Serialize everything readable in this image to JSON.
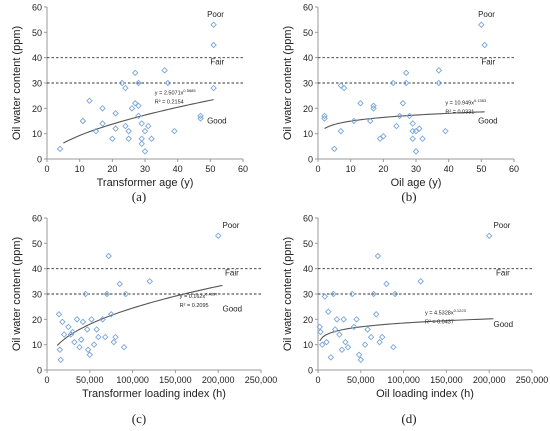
{
  "chart_data": [
    {
      "type": "scatter",
      "panel": "(a)",
      "xlabel": "Transformer age (y)",
      "ylabel": "Oil water content (ppm)",
      "xlim": [
        0,
        60
      ],
      "ylim": [
        0,
        60
      ],
      "xticks": [
        0,
        10,
        20,
        30,
        40,
        50,
        60
      ],
      "xtick_labels": [
        "0",
        "10",
        "20",
        "30",
        "40",
        "50",
        "60"
      ],
      "yticks": [
        0,
        10,
        20,
        30,
        40,
        50,
        60
      ],
      "ytick_labels": [
        "0",
        "10",
        "20",
        "30",
        "40",
        "50",
        "60"
      ],
      "grid": false,
      "marker_color": "#7aa6d9",
      "trend_color": "#555555",
      "thresholds": [
        40,
        30
      ],
      "zones": [
        {
          "label": "Poor",
          "x": 49,
          "y": 56
        },
        {
          "label": "Fair",
          "x": 50,
          "y": 37.3
        },
        {
          "label": "Good",
          "x": 49,
          "y": 14
        }
      ],
      "trendline": {
        "a": 2.5071,
        "b": 0.5685,
        "x": [
          5,
          51
        ]
      },
      "equation": "y = 2.5071x",
      "equation_exp": "0.5685",
      "r2": "R² = 0.2154",
      "equation_pos": {
        "x": 33,
        "y": 25.5
      },
      "points": {
        "x": [
          4,
          11,
          13,
          15,
          17,
          17,
          20,
          21,
          21,
          23,
          24,
          24,
          25,
          25,
          26,
          27,
          27,
          28,
          28,
          28,
          29,
          29,
          29,
          30,
          30,
          31,
          32,
          36,
          37,
          39,
          47,
          47,
          51,
          51,
          51
        ],
        "y": [
          4,
          15,
          23,
          11,
          14,
          20,
          8,
          12,
          18,
          30,
          13,
          28,
          8,
          11,
          20,
          22,
          34,
          21,
          30,
          17,
          6,
          8,
          14,
          3,
          11,
          13,
          8,
          35,
          30,
          11,
          17,
          16,
          53,
          45,
          28
        ]
      }
    },
    {
      "type": "scatter",
      "panel": "(b)",
      "xlabel": "Oil age (y)",
      "ylabel": "Oil water content (ppm)",
      "xlim": [
        0,
        60
      ],
      "ylim": [
        0,
        60
      ],
      "xticks": [
        0,
        10,
        20,
        30,
        40,
        50,
        60
      ],
      "xtick_labels": [
        "0",
        "10",
        "20",
        "30",
        "40",
        "50",
        "60"
      ],
      "yticks": [
        0,
        10,
        20,
        30,
        40,
        50,
        60
      ],
      "ytick_labels": [
        "0",
        "10",
        "20",
        "30",
        "40",
        "50",
        "60"
      ],
      "grid": false,
      "marker_color": "#7aa6d9",
      "trend_color": "#555555",
      "thresholds": [
        40,
        30
      ],
      "zones": [
        {
          "label": "Poor",
          "x": 49,
          "y": 56
        },
        {
          "label": "Fair",
          "x": 50,
          "y": 37.3
        },
        {
          "label": "Good",
          "x": 49,
          "y": 14
        }
      ],
      "trendline": {
        "a": 10.949,
        "b": 0.1353,
        "x": [
          2,
          51
        ]
      },
      "equation": "y = 10.949x",
      "equation_exp": "0.1353",
      "r2": "R² = 0.0331",
      "equation_pos": {
        "x": 39,
        "y": 21.5
      },
      "points": {
        "x": [
          2,
          2,
          5,
          7,
          7,
          8,
          11,
          13,
          16,
          17,
          17,
          19,
          20,
          23,
          24,
          25,
          26,
          27,
          27,
          28,
          29,
          29,
          29,
          30,
          30,
          31,
          32,
          37,
          37,
          39,
          50,
          51
        ],
        "y": [
          16,
          17,
          4,
          11,
          29,
          28,
          15,
          22,
          15,
          20,
          21,
          8,
          9,
          30,
          13,
          17,
          22,
          30,
          34,
          17,
          8,
          11,
          14,
          3,
          11,
          12,
          8,
          35,
          30,
          11,
          53,
          45
        ]
      }
    },
    {
      "type": "scatter",
      "panel": "(c)",
      "xlabel": "Transformer loading index (h)",
      "ylabel": "Oil water content (ppm)",
      "xlim": [
        0,
        250000
      ],
      "ylim": [
        0,
        60
      ],
      "xticks": [
        0,
        50000,
        100000,
        150000,
        200000,
        250000
      ],
      "xtick_labels": [
        "0",
        "50,000",
        "100,000",
        "150,000",
        "200,000",
        "250,000"
      ],
      "yticks": [
        0,
        10,
        20,
        30,
        40,
        50,
        60
      ],
      "ytick_labels": [
        "0",
        "10",
        "20",
        "30",
        "40",
        "50",
        "60"
      ],
      "grid": false,
      "marker_color": "#7aa6d9",
      "trend_color": "#555555",
      "thresholds": [
        40,
        30
      ],
      "zones": [
        {
          "label": "Poor",
          "x": 205000,
          "y": 56
        },
        {
          "label": "Fair",
          "x": 208000,
          "y": 37.3
        },
        {
          "label": "Good",
          "x": 205000,
          "y": 23
        }
      ],
      "trendline": {
        "a": 0.162,
        "b": 0.4357,
        "x": [
          12000,
          205000
        ]
      },
      "equation": "y = 0.162x",
      "equation_exp": "0.4357",
      "r2": "R² = 0.2095",
      "equation_pos": {
        "x": 155000,
        "y": 28.5
      },
      "points": {
        "x": [
          14000,
          15000,
          16000,
          18000,
          20000,
          25000,
          28000,
          30000,
          32000,
          35000,
          38000,
          40000,
          42000,
          45000,
          47000,
          48000,
          50000,
          52000,
          55000,
          58000,
          60000,
          65000,
          68000,
          70000,
          72000,
          75000,
          78000,
          80000,
          85000,
          90000,
          92000,
          120000,
          200000
        ],
        "y": [
          22,
          8,
          4,
          19,
          14,
          17,
          14,
          15,
          11,
          20,
          9,
          12,
          19,
          30,
          16,
          8,
          6,
          20,
          10,
          16,
          13,
          20,
          13,
          30,
          45,
          22,
          11,
          13,
          34,
          9,
          30,
          35,
          53
        ]
      }
    },
    {
      "type": "scatter",
      "panel": "(d)",
      "xlabel": "Oil loading index (h)",
      "ylabel": "Oil water content (ppm)",
      "xlim": [
        0,
        250000
      ],
      "ylim": [
        0,
        60
      ],
      "xticks": [
        0,
        50000,
        100000,
        150000,
        200000,
        250000
      ],
      "xtick_labels": [
        "0",
        "50,000",
        "100,000",
        "150,000",
        "200,000",
        "250,000"
      ],
      "yticks": [
        0,
        10,
        20,
        30,
        40,
        50,
        60
      ],
      "ytick_labels": [
        "0",
        "10",
        "20",
        "30",
        "40",
        "50",
        "60"
      ],
      "grid": false,
      "marker_color": "#7aa6d9",
      "trend_color": "#555555",
      "thresholds": [
        40,
        30
      ],
      "zones": [
        {
          "label": "Poor",
          "x": 205000,
          "y": 56
        },
        {
          "label": "Fair",
          "x": 208000,
          "y": 37.3
        },
        {
          "label": "Good",
          "x": 205000,
          "y": 17
        }
      ],
      "trendline": {
        "a": 4.5328,
        "b": 0.1223,
        "x": [
          2000,
          205000
        ]
      },
      "equation": "y = 4.5328x",
      "equation_exp": "0.1223",
      "r2": "R² = 0.0437",
      "equation_pos": {
        "x": 125000,
        "y": 22
      },
      "points": {
        "x": [
          2000,
          3000,
          5000,
          8000,
          10000,
          12000,
          15000,
          18000,
          20000,
          22000,
          25000,
          28000,
          30000,
          32000,
          35000,
          40000,
          42000,
          45000,
          48000,
          50000,
          55000,
          58000,
          62000,
          65000,
          68000,
          70000,
          72000,
          75000,
          80000,
          88000,
          90000,
          120000,
          200000
        ],
        "y": [
          17,
          15,
          10,
          29,
          11,
          23,
          5,
          30,
          16,
          20,
          14,
          8,
          20,
          11,
          9,
          30,
          17,
          20,
          6,
          4,
          10,
          16,
          13,
          30,
          22,
          45,
          11,
          13,
          34,
          9,
          30,
          35,
          53
        ]
      }
    }
  ]
}
